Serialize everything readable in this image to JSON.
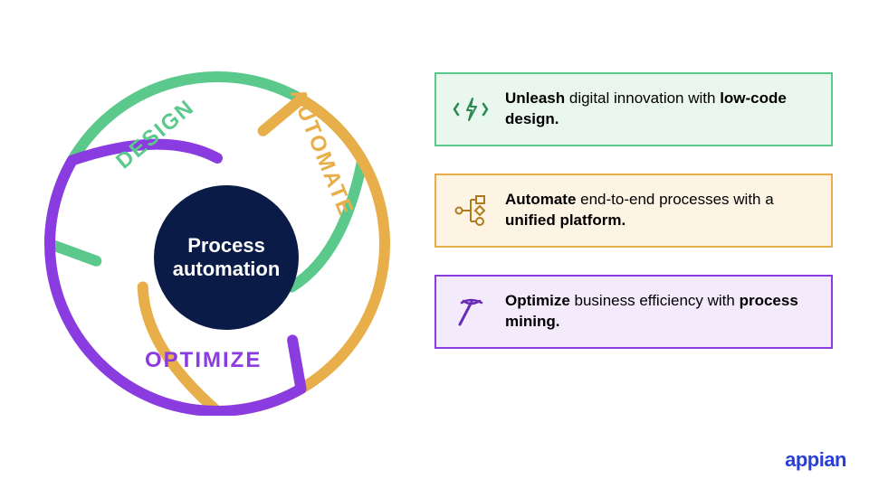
{
  "diagram": {
    "type": "infographic",
    "center": {
      "label": "Process\nautomation",
      "bg_color": "#0b1b47",
      "text_color": "#ffffff",
      "fontsize": 22
    },
    "segments": [
      {
        "id": "design",
        "label": "DESIGN",
        "color": "#5bc98b",
        "label_color": "#5bc98b"
      },
      {
        "id": "automate",
        "label": "AUTOMATE",
        "color": "#e8ae4a",
        "label_color": "#e8ae4a"
      },
      {
        "id": "optimize",
        "label": "OPTIMIZE",
        "color": "#8a3ce0",
        "label_color": "#8a3ce0"
      }
    ],
    "ring_stroke_width": 12,
    "background_color": "#ffffff"
  },
  "cards": [
    {
      "id": "design",
      "icon": "lightning-code-icon",
      "border_color": "#5bc98b",
      "bg_color": "#e9f7ef",
      "icon_color": "#2a8a55",
      "text_parts": [
        {
          "t": "Unleash",
          "bold": true
        },
        {
          "t": " digital innovation with ",
          "bold": false
        },
        {
          "t": "low-code design.",
          "bold": true
        }
      ]
    },
    {
      "id": "automate",
      "icon": "workflow-icon",
      "border_color": "#e8ae4a",
      "bg_color": "#fdf4e4",
      "icon_color": "#b07a1e",
      "text_parts": [
        {
          "t": "Automate",
          "bold": true
        },
        {
          "t": " end-to-end processes with a ",
          "bold": false
        },
        {
          "t": "unified platform.",
          "bold": true
        }
      ]
    },
    {
      "id": "optimize",
      "icon": "pickaxe-icon",
      "border_color": "#8a3ce0",
      "bg_color": "#f3ebfc",
      "icon_color": "#6a2bb8",
      "text_parts": [
        {
          "t": "Optimize",
          "bold": true
        },
        {
          "t": " business efficiency with ",
          "bold": false
        },
        {
          "t": "process mining.",
          "bold": true
        }
      ]
    }
  ],
  "logo": {
    "text": "appian",
    "color": "#2a3fd4",
    "fontsize": 22
  }
}
